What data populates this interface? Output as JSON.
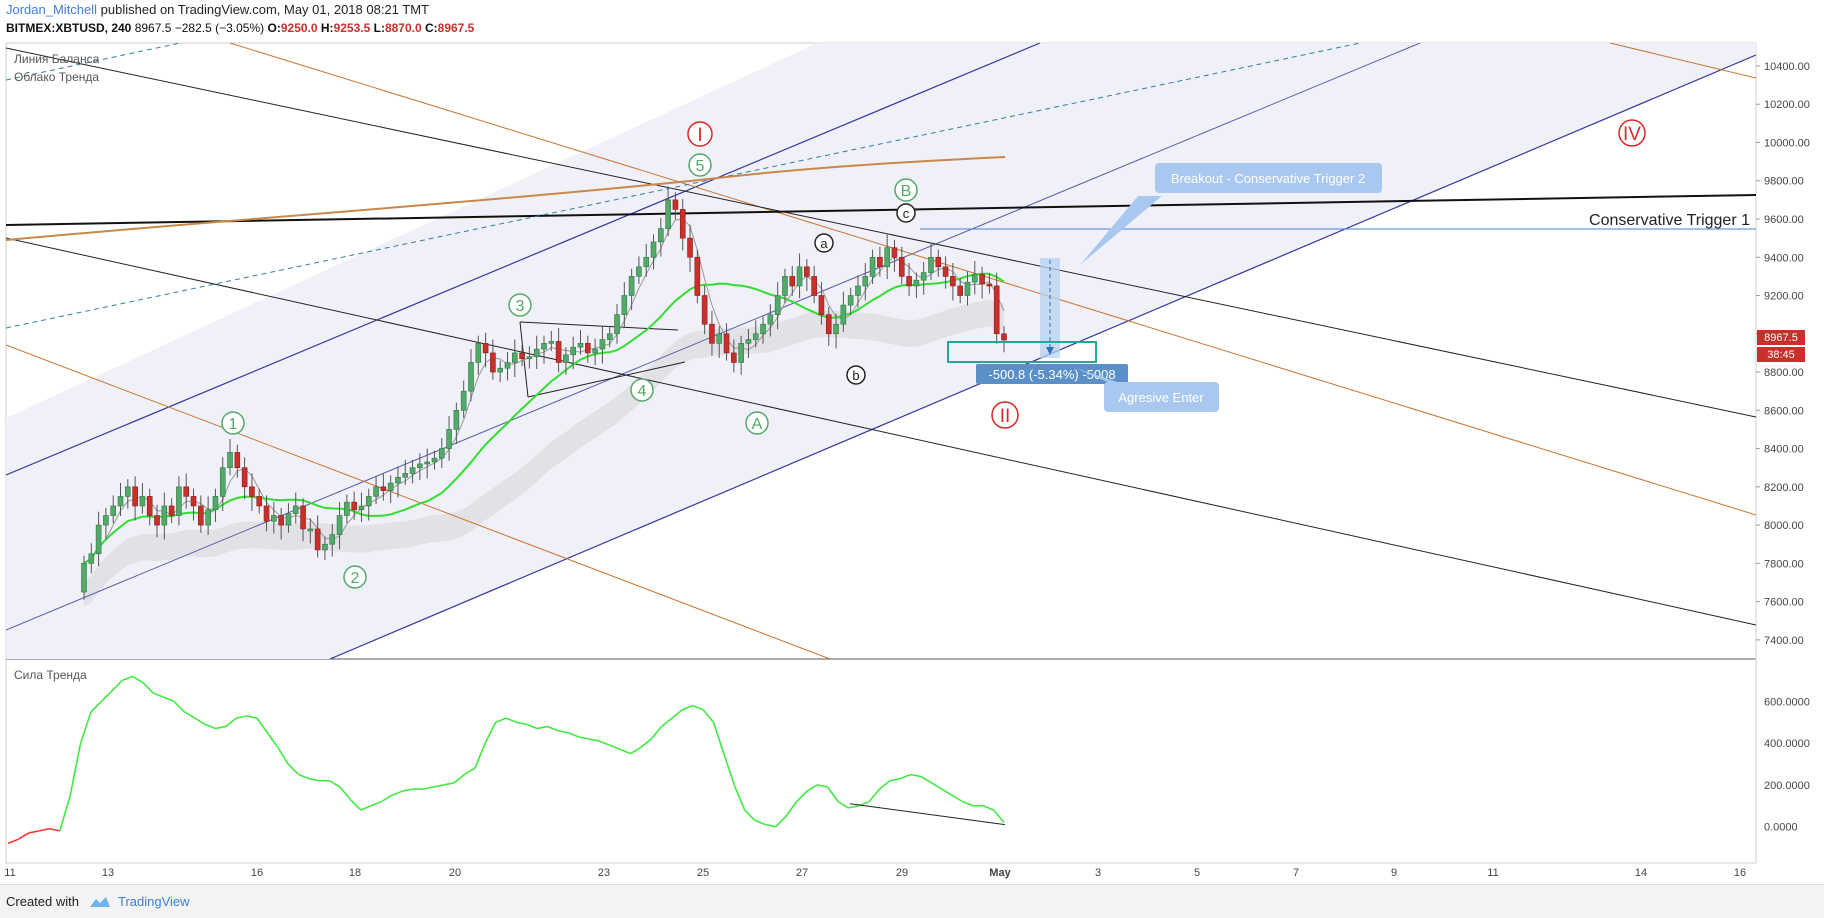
{
  "header": {
    "author": "Jordan_Mitchell",
    "published_text": "published on TradingView.com, May 01, 2018 08:21 TMT",
    "symbol": "BITMEX:XBTUSD, 240",
    "last": "8967.5",
    "change": "−282.5 (−3.05%)",
    "o_label": "O:",
    "o": "9250.0",
    "h_label": "H:",
    "h": "9253.5",
    "l_label": "L:",
    "l": "8870.0",
    "c_label": "C:",
    "c": "8967.5"
  },
  "legend": {
    "line1": "Линия Баланса",
    "line2": "Облако Тренда",
    "indicator": "Сила Тренда"
  },
  "annotations": {
    "breakout": "Breakout - Conservative Trigger 2",
    "conservative1": "Conservative Trigger 1",
    "aggressive": "Agresive Enter",
    "measure": "-500.8 (-5.34%) -5008",
    "price_tag": "8967.5",
    "time_tag": "38:45"
  },
  "wave_labels": {
    "I": "I",
    "II": "II",
    "IV": "IV",
    "w1": "1",
    "w2": "2",
    "w3": "3",
    "w4": "4",
    "w5": "5",
    "A": "A",
    "B": "B",
    "a": "a",
    "b": "b",
    "c": "c"
  },
  "footer": {
    "created_with": "Created with",
    "brand": "TradingView"
  },
  "colors": {
    "up": "#53a86a",
    "down": "#c8302c",
    "signal": "#42e842",
    "signal_neg": "#ff3333"
  },
  "chart_data": [
    {
      "type": "candlestick",
      "title": "BITMEX:XBTUSD, 240",
      "x_ticks": [
        "11",
        "13",
        "16",
        "18",
        "20",
        "23",
        "25",
        "27",
        "29",
        "May",
        "3",
        "5",
        "7",
        "9",
        "11",
        "14",
        "16"
      ],
      "y_ticks": [
        10400,
        10200,
        10000,
        9800,
        9600,
        9400,
        9200,
        9000,
        8800,
        8600,
        8400,
        8200,
        8000,
        7800,
        7600,
        7400
      ],
      "ylim": [
        7300,
        10520
      ],
      "close_series": [
        7800,
        7850,
        8000,
        8050,
        8100,
        8150,
        8200,
        8100,
        8150,
        8050,
        8000,
        8100,
        8050,
        8200,
        8150,
        8100,
        8000,
        8080,
        8150,
        8300,
        8380,
        8300,
        8200,
        8150,
        8100,
        8020,
        8050,
        8000,
        8060,
        8100,
        7980,
        7980,
        7870,
        7900,
        7950,
        8050,
        8120,
        8080,
        8100,
        8150,
        8200,
        8180,
        8220,
        8250,
        8270,
        8300,
        8320,
        8330,
        8350,
        8400,
        8500,
        8600,
        8700,
        8850,
        8950,
        8900,
        8800,
        8820,
        8850,
        8900,
        8870,
        8880,
        8920,
        8950,
        8960,
        8850,
        8890,
        8930,
        8950,
        8900,
        8920,
        8970,
        9000,
        9100,
        9200,
        9300,
        9350,
        9400,
        9480,
        9550,
        9700,
        9650,
        9500,
        9400,
        9200,
        9050,
        8950,
        9000,
        8900,
        8850,
        8950,
        8970,
        9000,
        9050,
        9100,
        9200,
        9300,
        9250,
        9350,
        9300,
        9200,
        9100,
        9000,
        9050,
        9150,
        9200,
        9250,
        9300,
        9400,
        9350,
        9450,
        9400,
        9300,
        9250,
        9280,
        9320,
        9400,
        9350,
        9300,
        9250,
        9200,
        9270,
        9310,
        9260,
        9250,
        9000,
        8967.5
      ]
    },
    {
      "type": "line",
      "title": "Сила Тренда",
      "y_ticks": [
        600,
        400,
        200,
        0
      ],
      "ylim": [
        -150,
        760
      ],
      "values": [
        -80,
        -60,
        -30,
        -20,
        -10,
        -20,
        150,
        400,
        550,
        600,
        650,
        700,
        720,
        690,
        640,
        620,
        600,
        550,
        520,
        490,
        470,
        480,
        520,
        530,
        520,
        450,
        380,
        300,
        250,
        230,
        220,
        220,
        190,
        130,
        80,
        100,
        120,
        150,
        170,
        180,
        180,
        190,
        200,
        210,
        250,
        280,
        400,
        500,
        520,
        500,
        490,
        470,
        480,
        460,
        450,
        430,
        420,
        410,
        390,
        370,
        350,
        380,
        420,
        480,
        520,
        560,
        580,
        560,
        500,
        350,
        200,
        80,
        30,
        10,
        0,
        50,
        120,
        170,
        200,
        190,
        120,
        90,
        100,
        120,
        180,
        220,
        230,
        250,
        240,
        210,
        180,
        150,
        120,
        100,
        100,
        80,
        20
      ],
      "divergence_line": [
        [
          735,
          110
        ],
        [
          865,
          10
        ]
      ]
    }
  ]
}
